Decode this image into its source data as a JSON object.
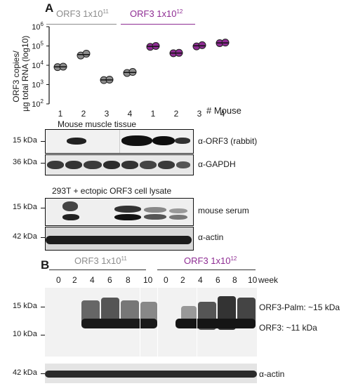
{
  "panel_a": {
    "label": "A",
    "group1": {
      "prefix": "ORF3 1x10",
      "exp": "11",
      "color": "#8c8c8c"
    },
    "group2": {
      "prefix": "ORF3 1x10",
      "exp": "12",
      "color": "#8e2c93"
    },
    "ylabel_line1": "ORF3 copies/",
    "ylabel_line2": "µg total RNA (log10)",
    "y_ticks": [
      {
        "base": "10",
        "exp": "6"
      },
      {
        "base": "10",
        "exp": "5"
      },
      {
        "base": "10",
        "exp": "4"
      },
      {
        "base": "10",
        "exp": "3"
      },
      {
        "base": "10",
        "exp": "2"
      }
    ],
    "x_ticks": [
      "1",
      "2",
      "3",
      "4",
      "1",
      "2",
      "3",
      "4"
    ],
    "x_suffix": "# Mouse",
    "muscle_title": "Mouse muscle tissue",
    "blot1_marker": "15 kDa",
    "blot1_label": "α-ORF3 (rabbit)",
    "blot2_marker": "36 kDa",
    "blot2_label": "α-GAPDH",
    "lysate_title": "293T + ectopic ORF3 cell lysate",
    "blot3_marker": "15 kDa",
    "blot3_label": "mouse serum",
    "blot4_marker": "42 kDa",
    "blot4_label": "α-actin"
  },
  "panel_b": {
    "label": "B",
    "group1": {
      "prefix": "ORF3 1x10",
      "exp": "11"
    },
    "group2": {
      "prefix": "ORF3 1x10",
      "exp": "12"
    },
    "weeks": [
      "0",
      "2",
      "4",
      "6",
      "8",
      "10",
      "0",
      "2",
      "4",
      "6",
      "8",
      "10"
    ],
    "week_label": "week",
    "marker_15": "15 kDa",
    "marker_10": "10 kDa",
    "band_upper": "ORF3-Palm: ~15 kDa",
    "band_lower": "ORF3: ~11 kDa",
    "actin_marker": "42 kDa",
    "actin_label": "α-actin"
  },
  "chart_data": {
    "type": "scatter",
    "xlabel": "# Mouse",
    "ylabel": "ORF3 copies/ µg total RNA (log10)",
    "yscale": "log",
    "ylim": [
      100,
      1000000
    ],
    "categories": [
      "1",
      "2",
      "3",
      "4",
      "1",
      "2",
      "3",
      "4"
    ],
    "series": [
      {
        "name": "ORF3 1x10^11",
        "color": "#8c8c8c",
        "points": [
          {
            "mouse": 1,
            "values": [
              8000,
              8500
            ]
          },
          {
            "mouse": 2,
            "values": [
              32000,
              40000
            ]
          },
          {
            "mouse": 3,
            "values": [
              1700,
              1800
            ]
          },
          {
            "mouse": 4,
            "values": [
              4000,
              4500
            ]
          }
        ]
      },
      {
        "name": "ORF3 1x10^12",
        "color": "#8e2c93",
        "points": [
          {
            "mouse": 1,
            "values": [
              90000,
              100000
            ]
          },
          {
            "mouse": 2,
            "values": [
              42000,
              44000
            ]
          },
          {
            "mouse": 3,
            "values": [
              95000,
              110000
            ]
          },
          {
            "mouse": 4,
            "values": [
              140000,
              150000
            ]
          }
        ]
      }
    ]
  }
}
